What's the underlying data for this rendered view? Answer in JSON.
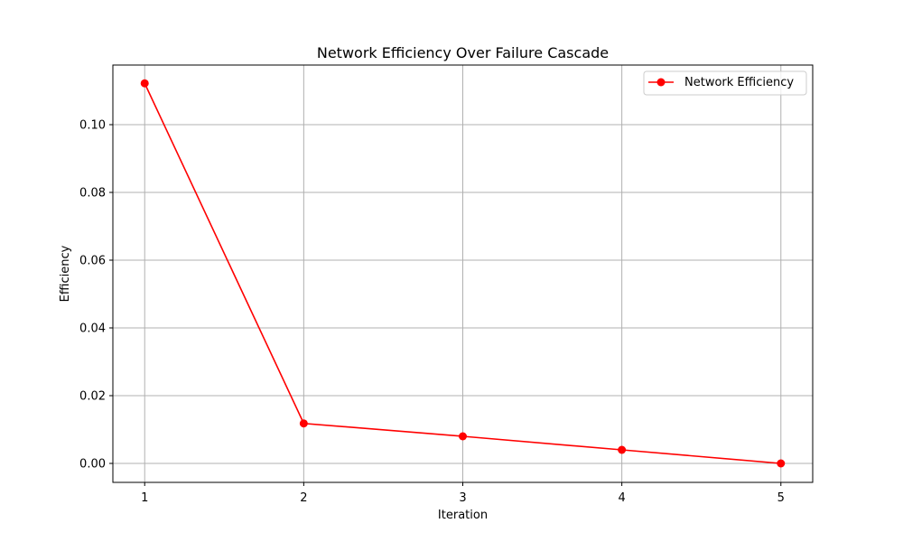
{
  "chart_data": {
    "type": "line",
    "title": "Network Efficiency Over Failure Cascade",
    "xlabel": "Iteration",
    "ylabel": "Efficiency",
    "x": [
      1,
      2,
      3,
      4,
      5
    ],
    "x_ticks": [
      "1",
      "2",
      "3",
      "4",
      "5"
    ],
    "y_ticks": [
      "0.00",
      "0.02",
      "0.04",
      "0.06",
      "0.08",
      "0.10"
    ],
    "xlim": [
      0.8,
      5.2
    ],
    "ylim": [
      -0.0056,
      0.1176
    ],
    "grid": true,
    "legend_position": "top-right",
    "series": [
      {
        "name": "Network Efficiency",
        "color": "#ff0000",
        "marker": "circle",
        "values": [
          0.1122,
          0.0118,
          0.008,
          0.004,
          0.0
        ]
      }
    ]
  }
}
